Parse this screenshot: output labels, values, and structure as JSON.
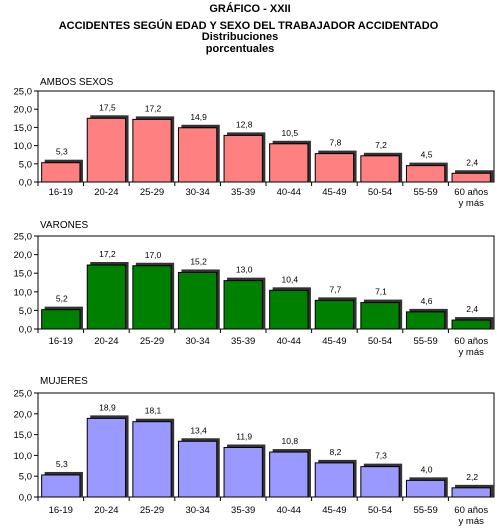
{
  "header": {
    "figure": "GRÁFICO - XXII",
    "title": "ACCIDENTES SEGÚN EDAD Y SEXO DEL TRABAJADOR ACCIDENTADO",
    "subtitle": "Distribuciones porcentuales"
  },
  "chart_data": [
    {
      "type": "bar",
      "title": "AMBOS SEXOS",
      "categories": [
        "16-19",
        "20-24",
        "25-29",
        "30-34",
        "35-39",
        "40-44",
        "45-49",
        "50-54",
        "55-59",
        "60 años y más"
      ],
      "values": [
        5.3,
        17.5,
        17.2,
        14.9,
        12.8,
        10.5,
        7.8,
        7.2,
        4.5,
        2.4
      ],
      "value_labels": [
        "5,3",
        "17,5",
        "17,2",
        "14,9",
        "12,8",
        "10,5",
        "7,8",
        "7,2",
        "4,5",
        "2,4"
      ],
      "yticks": [
        "0,0",
        "5,0",
        "10,0",
        "15,0",
        "20,0",
        "25,0"
      ],
      "ylim": [
        0,
        25
      ],
      "color": "#ff8080",
      "grid": false,
      "legend": "none"
    },
    {
      "type": "bar",
      "title": "VARONES",
      "categories": [
        "16-19",
        "20-24",
        "25-29",
        "30-34",
        "35-39",
        "40-44",
        "45-49",
        "50-54",
        "55-59",
        "60 años y más"
      ],
      "values": [
        5.2,
        17.2,
        17.0,
        15.2,
        13.0,
        10.4,
        7.7,
        7.1,
        4.6,
        2.4
      ],
      "value_labels": [
        "5,2",
        "17,2",
        "17,0",
        "15,2",
        "13,0",
        "10,4",
        "7,7",
        "7,1",
        "4,6",
        "2,4"
      ],
      "yticks": [
        "0,0",
        "5,0",
        "10,0",
        "15,0",
        "20,0",
        "25,0"
      ],
      "ylim": [
        0,
        25
      ],
      "color": "#008000",
      "grid": false,
      "legend": "none"
    },
    {
      "type": "bar",
      "title": "MUJERES",
      "categories": [
        "16-19",
        "20-24",
        "25-29",
        "30-34",
        "35-39",
        "40-44",
        "45-49",
        "50-54",
        "55-59",
        "60 años y más"
      ],
      "values": [
        5.3,
        18.9,
        18.1,
        13.4,
        11.9,
        10.8,
        8.2,
        7.3,
        4.0,
        2.2
      ],
      "value_labels": [
        "5,3",
        "18,9",
        "18,1",
        "13,4",
        "11,9",
        "10,8",
        "8,2",
        "7,3",
        "4,0",
        "2,2"
      ],
      "yticks": [
        "0,0",
        "5,0",
        "10,0",
        "15,0",
        "20,0",
        "25,0"
      ],
      "ylim": [
        0,
        25
      ],
      "color": "#9999ff",
      "grid": false,
      "legend": "none"
    }
  ]
}
